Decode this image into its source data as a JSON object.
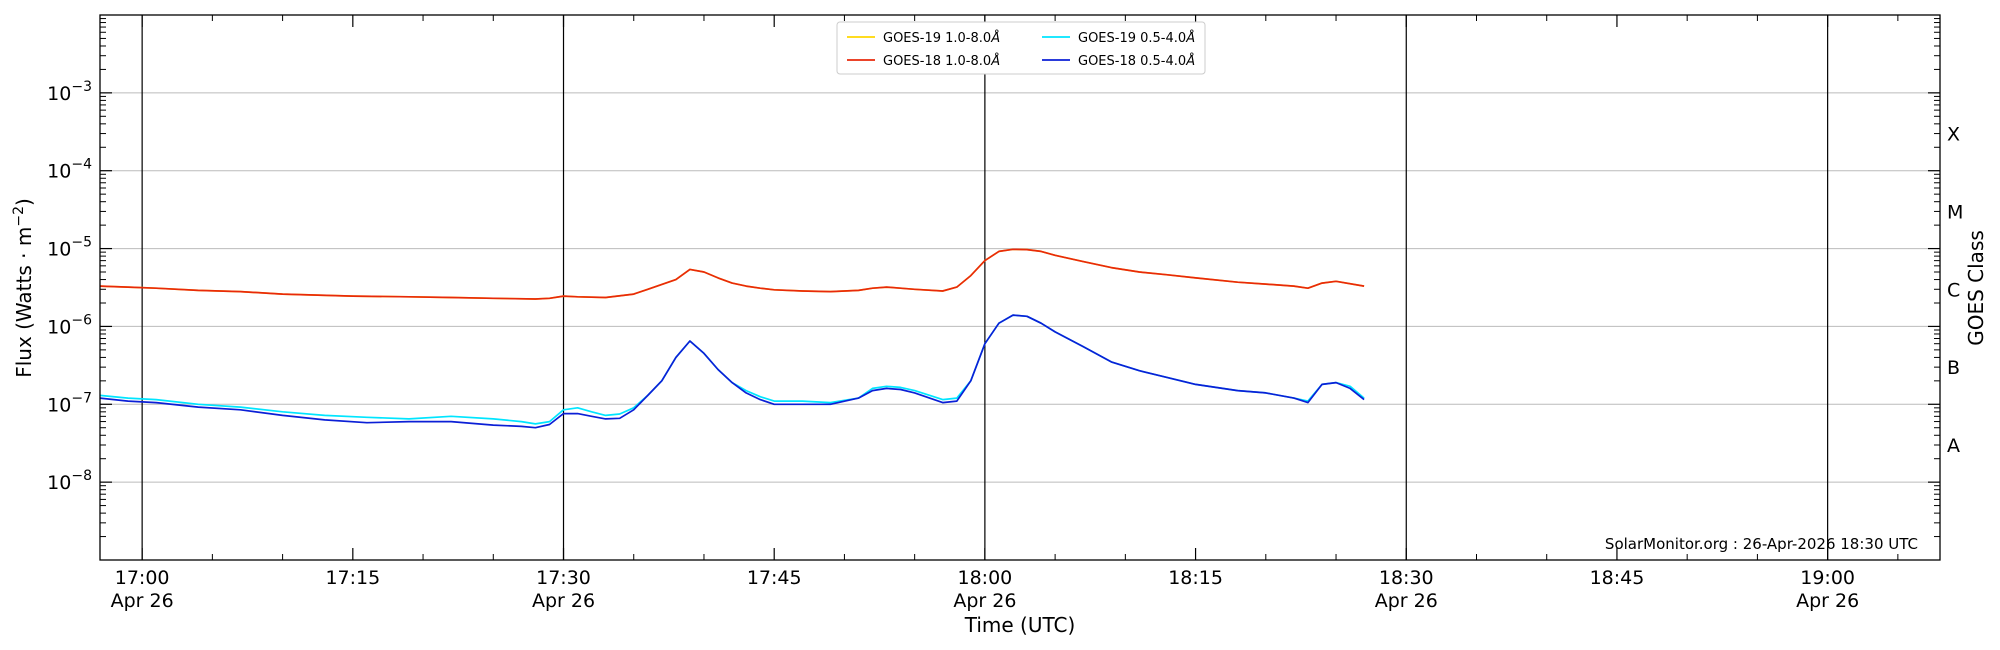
{
  "chart_data": {
    "type": "line",
    "xlabel": "Time (UTC)",
    "ylabel": "Flux (Watts · m",
    "ylabel_sup": "−2",
    "ylabel_close": ")",
    "y_scale": "log",
    "ylim": [
      1e-09,
      0.01
    ],
    "xlim": [
      "16:57",
      "19:08"
    ],
    "y_ticks": [
      {
        "value": 1e-08,
        "label": "10",
        "exp": "−8"
      },
      {
        "value": 1e-07,
        "label": "10",
        "exp": "−7"
      },
      {
        "value": 1e-06,
        "label": "10",
        "exp": "−6"
      },
      {
        "value": 1e-05,
        "label": "10",
        "exp": "−5"
      },
      {
        "value": 0.0001,
        "label": "10",
        "exp": "−4"
      },
      {
        "value": 0.001,
        "label": "10",
        "exp": "−3"
      }
    ],
    "x_ticks": [
      {
        "time": "17:00",
        "label": "17:00",
        "date": "Apr 26",
        "major": true
      },
      {
        "time": "17:15",
        "label": "17:15",
        "date": "",
        "major": false
      },
      {
        "time": "17:30",
        "label": "17:30",
        "date": "Apr 26",
        "major": true
      },
      {
        "time": "17:45",
        "label": "17:45",
        "date": "",
        "major": false
      },
      {
        "time": "18:00",
        "label": "18:00",
        "date": "Apr 26",
        "major": true
      },
      {
        "time": "18:15",
        "label": "18:15",
        "date": "",
        "major": false
      },
      {
        "time": "18:30",
        "label": "18:30",
        "date": "Apr 26",
        "major": true
      },
      {
        "time": "18:45",
        "label": "18:45",
        "date": "",
        "major": false
      },
      {
        "time": "19:00",
        "label": "19:00",
        "date": "Apr 26",
        "major": true
      }
    ],
    "goes_class_label": "GOES Class",
    "goes_classes": [
      {
        "label": "X",
        "value": 0.0003
      },
      {
        "label": "M",
        "value": 3e-05
      },
      {
        "label": "C",
        "value": 3e-06
      },
      {
        "label": "B",
        "value": 3e-07
      },
      {
        "label": "A",
        "value": 3e-08
      }
    ],
    "grid": "horizontal at each decade",
    "legend_position": "top-center",
    "series": [
      {
        "name": "GOES-19 1.0-8.0",
        "unit": "Å",
        "color": "#ffd700",
        "x": [
          "16:57",
          "16:59",
          "17:01",
          "17:04",
          "17:07",
          "17:10",
          "17:15",
          "17:19",
          "17:22",
          "17:25",
          "17:28",
          "17:29",
          "17:30",
          "17:31",
          "17:33",
          "17:35",
          "17:36",
          "17:38",
          "17:39",
          "17:40",
          "17:41",
          "17:42",
          "17:43",
          "17:44",
          "17:45",
          "17:47",
          "17:49",
          "17:51",
          "17:52",
          "17:53",
          "17:54",
          "17:55",
          "17:57",
          "17:58",
          "17:59",
          "18:00",
          "18:01",
          "18:02",
          "18:03",
          "18:04",
          "18:05",
          "18:07",
          "18:09",
          "18:11",
          "18:13",
          "18:15",
          "18:18",
          "18:20",
          "18:22",
          "18:23",
          "18:24",
          "18:25",
          "18:27"
        ],
        "values": [
          3.3e-06,
          3.2e-06,
          3.1e-06,
          2.9e-06,
          2.8e-06,
          2.6e-06,
          2.45e-06,
          2.4e-06,
          2.35e-06,
          2.3e-06,
          2.25e-06,
          2.3e-06,
          2.45e-06,
          2.4e-06,
          2.35e-06,
          2.6e-06,
          3e-06,
          4e-06,
          5.4e-06,
          5e-06,
          4.2e-06,
          3.6e-06,
          3.3e-06,
          3.1e-06,
          2.95e-06,
          2.85e-06,
          2.8e-06,
          2.9e-06,
          3.1e-06,
          3.2e-06,
          3.1e-06,
          3e-06,
          2.85e-06,
          3.2e-06,
          4.5e-06,
          7e-06,
          9.2e-06,
          9.8e-06,
          9.7e-06,
          9.2e-06,
          8.2e-06,
          6.8e-06,
          5.7e-06,
          5e-06,
          4.6e-06,
          4.2e-06,
          3.7e-06,
          3.5e-06,
          3.3e-06,
          3.1e-06,
          3.6e-06,
          3.8e-06,
          3.3e-06
        ]
      },
      {
        "name": "GOES-18 1.0-8.0",
        "unit": "Å",
        "color": "#e8290b",
        "x": [
          "16:57",
          "16:59",
          "17:01",
          "17:04",
          "17:07",
          "17:10",
          "17:15",
          "17:19",
          "17:22",
          "17:25",
          "17:28",
          "17:29",
          "17:30",
          "17:31",
          "17:33",
          "17:35",
          "17:36",
          "17:38",
          "17:39",
          "17:40",
          "17:41",
          "17:42",
          "17:43",
          "17:44",
          "17:45",
          "17:47",
          "17:49",
          "17:51",
          "17:52",
          "17:53",
          "17:54",
          "17:55",
          "17:57",
          "17:58",
          "17:59",
          "18:00",
          "18:01",
          "18:02",
          "18:03",
          "18:04",
          "18:05",
          "18:07",
          "18:09",
          "18:11",
          "18:13",
          "18:15",
          "18:18",
          "18:20",
          "18:22",
          "18:23",
          "18:24",
          "18:25",
          "18:27"
        ],
        "values": [
          3.3e-06,
          3.2e-06,
          3.1e-06,
          2.9e-06,
          2.8e-06,
          2.6e-06,
          2.45e-06,
          2.4e-06,
          2.35e-06,
          2.3e-06,
          2.25e-06,
          2.3e-06,
          2.45e-06,
          2.4e-06,
          2.35e-06,
          2.6e-06,
          3e-06,
          4e-06,
          5.4e-06,
          5e-06,
          4.2e-06,
          3.6e-06,
          3.3e-06,
          3.1e-06,
          2.95e-06,
          2.85e-06,
          2.8e-06,
          2.9e-06,
          3.1e-06,
          3.2e-06,
          3.1e-06,
          3e-06,
          2.85e-06,
          3.2e-06,
          4.5e-06,
          7e-06,
          9.2e-06,
          9.8e-06,
          9.7e-06,
          9.2e-06,
          8.2e-06,
          6.8e-06,
          5.7e-06,
          5e-06,
          4.6e-06,
          4.2e-06,
          3.7e-06,
          3.5e-06,
          3.3e-06,
          3.1e-06,
          3.6e-06,
          3.8e-06,
          3.3e-06
        ]
      },
      {
        "name": "GOES-19 0.5-4.0",
        "unit": "Å",
        "color": "#00e5ff",
        "x": [
          "16:57",
          "16:59",
          "17:01",
          "17:04",
          "17:07",
          "17:10",
          "17:13",
          "17:16",
          "17:19",
          "17:22",
          "17:25",
          "17:27",
          "17:28",
          "17:29",
          "17:30",
          "17:31",
          "17:32",
          "17:33",
          "17:34",
          "17:35",
          "17:36",
          "17:37",
          "17:38",
          "17:39",
          "17:40",
          "17:41",
          "17:42",
          "17:43",
          "17:44",
          "17:45",
          "17:47",
          "17:49",
          "17:51",
          "17:52",
          "17:53",
          "17:54",
          "17:55",
          "17:57",
          "17:58",
          "17:59",
          "18:00",
          "18:01",
          "18:02",
          "18:03",
          "18:04",
          "18:05",
          "18:07",
          "18:09",
          "18:11",
          "18:13",
          "18:15",
          "18:18",
          "18:20",
          "18:22",
          "18:23",
          "18:24",
          "18:25",
          "18:26",
          "18:27"
        ],
        "values": [
          1.3e-07,
          1.2e-07,
          1.15e-07,
          1e-07,
          9.2e-08,
          8e-08,
          7.2e-08,
          6.8e-08,
          6.5e-08,
          7e-08,
          6.5e-08,
          6e-08,
          5.6e-08,
          6e-08,
          8.5e-08,
          9e-08,
          8e-08,
          7.2e-08,
          7.5e-08,
          9e-08,
          1.3e-07,
          2e-07,
          4e-07,
          6.5e-07,
          4.5e-07,
          2.8e-07,
          1.9e-07,
          1.5e-07,
          1.25e-07,
          1.1e-07,
          1.1e-07,
          1.05e-07,
          1.2e-07,
          1.6e-07,
          1.7e-07,
          1.65e-07,
          1.5e-07,
          1.15e-07,
          1.2e-07,
          2e-07,
          6e-07,
          1.1e-06,
          1.4e-06,
          1.35e-06,
          1.1e-06,
          8.5e-07,
          5.5e-07,
          3.5e-07,
          2.7e-07,
          2.2e-07,
          1.8e-07,
          1.5e-07,
          1.4e-07,
          1.2e-07,
          1.1e-07,
          1.8e-07,
          1.9e-07,
          1.7e-07,
          1.2e-07
        ]
      },
      {
        "name": "GOES-18 0.5-4.0",
        "unit": "Å",
        "color": "#0b1fd6",
        "x": [
          "16:57",
          "16:59",
          "17:01",
          "17:04",
          "17:07",
          "17:10",
          "17:13",
          "17:16",
          "17:19",
          "17:22",
          "17:25",
          "17:27",
          "17:28",
          "17:29",
          "17:30",
          "17:31",
          "17:32",
          "17:33",
          "17:34",
          "17:35",
          "17:36",
          "17:37",
          "17:38",
          "17:39",
          "17:40",
          "17:41",
          "17:42",
          "17:43",
          "17:44",
          "17:45",
          "17:47",
          "17:49",
          "17:51",
          "17:52",
          "17:53",
          "17:54",
          "17:55",
          "17:57",
          "17:58",
          "17:59",
          "18:00",
          "18:01",
          "18:02",
          "18:03",
          "18:04",
          "18:05",
          "18:07",
          "18:09",
          "18:11",
          "18:13",
          "18:15",
          "18:18",
          "18:20",
          "18:22",
          "18:23",
          "18:24",
          "18:25",
          "18:26",
          "18:27"
        ],
        "values": [
          1.2e-07,
          1.1e-07,
          1.05e-07,
          9.2e-08,
          8.5e-08,
          7.2e-08,
          6.3e-08,
          5.8e-08,
          6e-08,
          6e-08,
          5.4e-08,
          5.2e-08,
          5e-08,
          5.5e-08,
          7.6e-08,
          7.6e-08,
          7e-08,
          6.5e-08,
          6.6e-08,
          8.5e-08,
          1.3e-07,
          2e-07,
          4e-07,
          6.5e-07,
          4.5e-07,
          2.8e-07,
          1.9e-07,
          1.4e-07,
          1.15e-07,
          1e-07,
          1e-07,
          1e-07,
          1.2e-07,
          1.5e-07,
          1.6e-07,
          1.55e-07,
          1.4e-07,
          1.05e-07,
          1.1e-07,
          2e-07,
          6e-07,
          1.1e-06,
          1.4e-06,
          1.35e-06,
          1.1e-06,
          8.5e-07,
          5.5e-07,
          3.5e-07,
          2.7e-07,
          2.2e-07,
          1.8e-07,
          1.5e-07,
          1.4e-07,
          1.2e-07,
          1.05e-07,
          1.8e-07,
          1.9e-07,
          1.6e-07,
          1.15e-07
        ]
      }
    ],
    "credit": "SolarMonitor.org : 26-Apr-2026 18:30 UTC"
  }
}
